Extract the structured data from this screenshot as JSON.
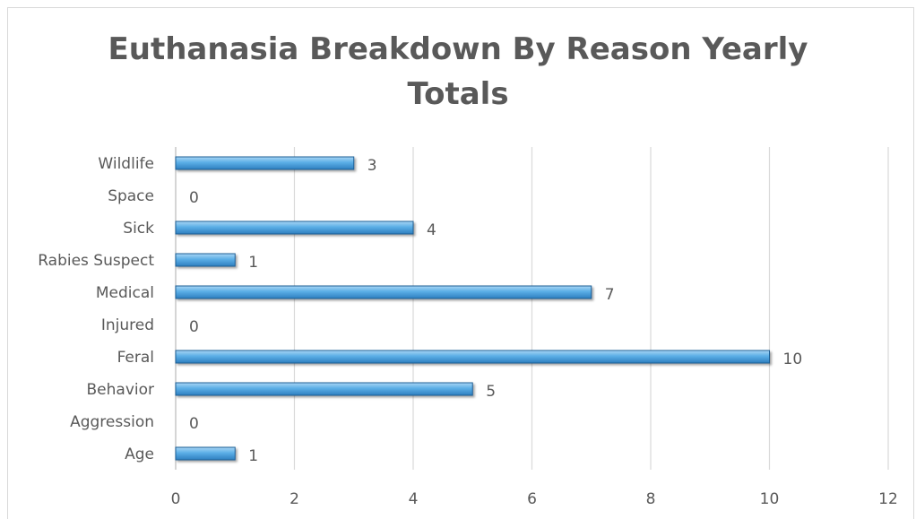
{
  "chart_data": {
    "type": "bar",
    "orientation": "horizontal",
    "title_lines": [
      "Euthanasia  Breakdown By Reason Yearly",
      "Totals"
    ],
    "categories": [
      "Age",
      "Aggression",
      "Behavior",
      "Feral",
      "Injured",
      "Medical",
      "Rabies Suspect",
      "Sick",
      "Space",
      "Wildlife"
    ],
    "values": [
      1,
      0,
      5,
      10,
      0,
      7,
      1,
      4,
      0,
      3
    ],
    "data_labels": [
      "1",
      "0",
      "5",
      "10",
      "0",
      "7",
      "1",
      "4",
      "0",
      "3"
    ],
    "xlim": [
      0,
      12
    ],
    "x_ticks": [
      0,
      2,
      4,
      6,
      8,
      10,
      12
    ],
    "x_tick_labels": [
      "0",
      "2",
      "4",
      "6",
      "8",
      "10",
      "12"
    ],
    "grid": true,
    "bar_color": "#4a9fd8"
  }
}
